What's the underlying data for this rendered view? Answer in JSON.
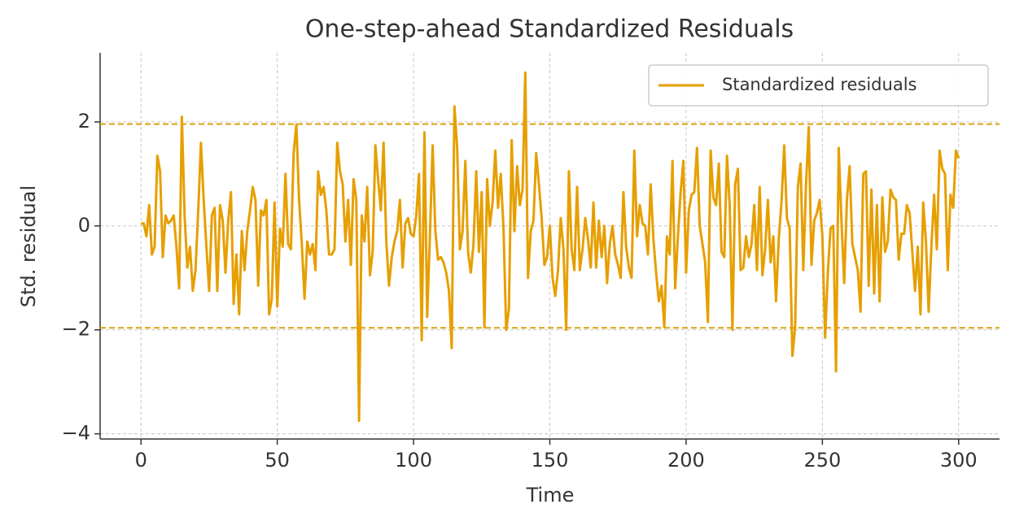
{
  "chart_data": {
    "type": "line",
    "title": "One-step-ahead Standardized Residuals",
    "x_label": "Time",
    "y_label": "Std. residual",
    "legend": "upper right",
    "grid": true,
    "xlim": [
      -15,
      315
    ],
    "ylim": [
      -4.1,
      3.33
    ],
    "xticks": [
      0,
      50,
      100,
      150,
      200,
      250,
      300
    ],
    "yticks": [
      {
        "value": -4,
        "label": "−4"
      },
      {
        "value": -2,
        "label": "−2"
      },
      0,
      2
    ],
    "reference_lines": [
      1.96,
      -1.96
    ],
    "reference_color": "#d9a20f",
    "x": [
      0,
      1,
      2,
      3,
      4,
      5,
      6,
      7,
      8,
      9,
      10,
      11,
      12,
      13,
      14,
      15,
      16,
      17,
      18,
      19,
      20,
      21,
      22,
      23,
      24,
      25,
      26,
      27,
      28,
      29,
      30,
      31,
      32,
      33,
      34,
      35,
      36,
      37,
      38,
      39,
      40,
      41,
      42,
      43,
      44,
      45,
      46,
      47,
      48,
      49,
      50,
      51,
      52,
      53,
      54,
      55,
      56,
      57,
      58,
      59,
      60,
      61,
      62,
      63,
      64,
      65,
      66,
      67,
      68,
      69,
      70,
      71,
      72,
      73,
      74,
      75,
      76,
      77,
      78,
      79,
      80,
      81,
      82,
      83,
      84,
      85,
      86,
      87,
      88,
      89,
      90,
      91,
      92,
      93,
      94,
      95,
      96,
      97,
      98,
      99,
      100,
      101,
      102,
      103,
      104,
      105,
      106,
      107,
      108,
      109,
      110,
      111,
      112,
      113,
      114,
      115,
      116,
      117,
      118,
      119,
      120,
      121,
      122,
      123,
      124,
      125,
      126,
      127,
      128,
      129,
      130,
      131,
      132,
      133,
      134,
      135,
      136,
      137,
      138,
      139,
      140,
      141,
      142,
      143,
      144,
      145,
      146,
      147,
      148,
      149,
      150,
      151,
      152,
      153,
      154,
      155,
      156,
      157,
      158,
      159,
      160,
      161,
      162,
      163,
      164,
      165,
      166,
      167,
      168,
      169,
      170,
      171,
      172,
      173,
      174,
      175,
      176,
      177,
      178,
      179,
      180,
      181,
      182,
      183,
      184,
      185,
      186,
      187,
      188,
      189,
      190,
      191,
      192,
      193,
      194,
      195,
      196,
      197,
      198,
      199,
      200,
      201,
      202,
      203,
      204,
      205,
      206,
      207,
      208,
      209,
      210,
      211,
      212,
      213,
      214,
      215,
      216,
      217,
      218,
      219,
      220,
      221,
      222,
      223,
      224,
      225,
      226,
      227,
      228,
      229,
      230,
      231,
      232,
      233,
      234,
      235,
      236,
      237,
      238,
      239,
      240,
      241,
      242,
      243,
      244,
      245,
      246,
      247,
      248,
      249,
      250,
      251,
      252,
      253,
      254,
      255,
      256,
      257,
      258,
      259,
      260,
      261,
      262,
      263,
      264,
      265,
      266,
      267,
      268,
      269,
      270,
      271,
      272,
      273,
      274,
      275,
      276,
      277,
      278,
      279,
      280,
      281,
      282,
      283,
      284,
      285,
      286,
      287,
      288,
      289,
      290,
      291,
      292,
      293,
      294,
      295,
      296,
      297,
      298,
      299,
      300
    ],
    "series": [
      {
        "name": "Standardized residuals",
        "color": "#e69f00",
        "values": [
          0.05,
          0.05,
          -0.2,
          0.4,
          -0.55,
          -0.4,
          1.35,
          1.05,
          -0.6,
          0.2,
          0.05,
          0.1,
          0.2,
          -0.4,
          -1.2,
          2.1,
          0.2,
          -0.8,
          -0.4,
          -1.25,
          -0.85,
          0.3,
          1.6,
          0.5,
          -0.4,
          -1.25,
          0.2,
          0.35,
          -1.25,
          0.4,
          0.1,
          -0.9,
          0.1,
          0.65,
          -1.5,
          -0.55,
          -1.7,
          -0.1,
          -0.85,
          -0.1,
          0.3,
          0.75,
          0.5,
          -1.15,
          0.3,
          0.2,
          0.5,
          -1.7,
          -1.4,
          0.45,
          -1.55,
          -0.05,
          -0.4,
          1.0,
          -0.35,
          -0.45,
          1.4,
          1.95,
          0.5,
          -0.35,
          -1.4,
          -0.3,
          -0.55,
          -0.35,
          -0.85,
          1.05,
          0.6,
          0.75,
          0.3,
          -0.55,
          -0.55,
          -0.45,
          1.6,
          1.05,
          0.8,
          -0.3,
          0.5,
          -0.75,
          0.9,
          0.5,
          -3.75,
          0.2,
          -0.3,
          0.75,
          -0.95,
          -0.5,
          1.55,
          0.9,
          0.3,
          1.6,
          -0.3,
          -1.15,
          -0.6,
          -0.3,
          -0.1,
          0.5,
          -0.8,
          0.05,
          0.15,
          -0.15,
          -0.2,
          0.2,
          1.0,
          -2.2,
          1.8,
          -1.75,
          -0.2,
          1.55,
          -0.1,
          -0.65,
          -0.6,
          -0.7,
          -0.9,
          -1.25,
          -2.35,
          2.3,
          1.5,
          -0.45,
          -0.1,
          1.25,
          -0.5,
          -0.9,
          -0.35,
          1.05,
          -0.5,
          0.65,
          -1.95,
          0.9,
          0.0,
          0.45,
          1.45,
          0.35,
          1.0,
          -0.05,
          -2.0,
          -1.6,
          1.65,
          -0.1,
          1.15,
          0.4,
          0.7,
          2.95,
          -1.0,
          -0.1,
          0.1,
          1.4,
          0.8,
          0.15,
          -0.75,
          -0.6,
          0.0,
          -1.0,
          -1.35,
          -0.85,
          0.15,
          -0.45,
          -2.0,
          1.05,
          -0.45,
          -0.85,
          0.75,
          -0.85,
          -0.45,
          0.15,
          -0.25,
          -0.8,
          0.45,
          -0.8,
          0.1,
          -0.6,
          0.0,
          -1.1,
          -0.35,
          0.0,
          -0.55,
          -0.75,
          -1.0,
          0.65,
          -0.4,
          -0.8,
          -1.0,
          1.45,
          -0.2,
          0.4,
          0.05,
          0.0,
          -0.55,
          0.8,
          -0.25,
          -0.9,
          -1.45,
          -1.15,
          -1.95,
          -0.2,
          -0.55,
          1.25,
          -1.2,
          -0.2,
          0.65,
          1.25,
          -0.9,
          0.3,
          0.6,
          0.65,
          1.5,
          0.0,
          -0.35,
          -0.7,
          -1.85,
          1.45,
          0.55,
          0.4,
          1.2,
          -0.5,
          -0.6,
          1.35,
          0.4,
          -2.0,
          0.8,
          1.1,
          -0.85,
          -0.8,
          -0.2,
          -0.6,
          -0.35,
          0.4,
          -0.85,
          0.75,
          -0.95,
          -0.45,
          0.5,
          -0.7,
          -0.2,
          -1.45,
          -0.25,
          0.45,
          1.55,
          0.15,
          -0.05,
          -2.5,
          -1.95,
          0.75,
          1.2,
          -0.85,
          0.8,
          1.9,
          -0.75,
          0.1,
          0.25,
          0.5,
          -0.2,
          -2.15,
          -0.9,
          -0.05,
          0.0,
          -2.8,
          1.5,
          0.1,
          -1.1,
          0.5,
          1.15,
          -0.35,
          -0.6,
          -0.85,
          -1.65,
          1.0,
          1.05,
          -1.15,
          0.7,
          -1.3,
          0.4,
          -1.45,
          0.55,
          -0.5,
          -0.3,
          0.7,
          0.55,
          0.5,
          -0.65,
          -0.15,
          -0.15,
          0.4,
          0.25,
          -0.5,
          -1.25,
          -0.4,
          -1.7,
          0.45,
          -0.3,
          -1.65,
          -0.4,
          0.6,
          -0.45,
          1.45,
          1.1,
          1.0,
          -0.85,
          0.6,
          0.35,
          1.45,
          1.3
        ]
      }
    ]
  }
}
